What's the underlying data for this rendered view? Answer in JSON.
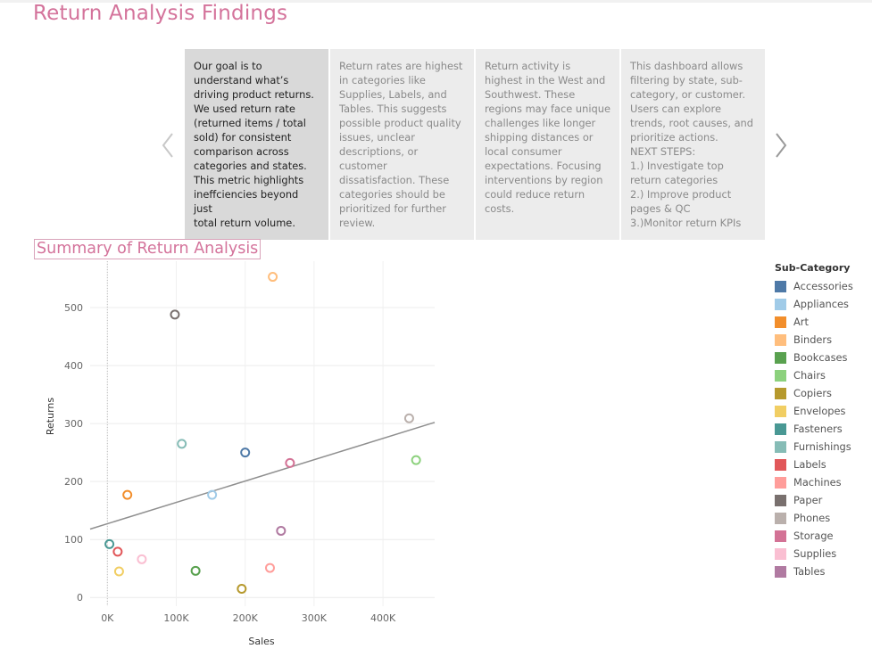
{
  "page": {
    "title": "Return Analysis Findings"
  },
  "carousel": {
    "prev_icon": "chevron-left-icon",
    "next_icon": "chevron-right-icon",
    "cards": [
      {
        "text": "Our goal is to\nunderstand what’s\ndriving product returns.\nWe used return rate\n(returned items / total\nsold) for consistent\ncomparison across\ncategories and states.\nThis metric highlights\nineffciencies beyond just\ntotal return volume."
      },
      {
        "text": "Return rates are highest\nin categories like\nSupplies, Labels, and\nTables. This suggests\npossible product quality\nissues, unclear\ndescriptions, or\ncustomer\ndissatisfaction. These\ncategories should be\nprioritized for further\nreview."
      },
      {
        "text": "Return activity is\nhighest in the West and\nSouthwest. These\nregions may face unique\nchallenges like longer\nshipping distances or\nlocal consumer\nexpectations. Focusing\ninterventions by region\ncould reduce return\ncosts."
      },
      {
        "text": "This dashboard allows\nfiltering by state, sub-\ncategory, or customer.\nUsers can explore\ntrends, root causes, and\nprioritize actions.\nNEXT STEPS:\n1.) Investigate top\nreturn categories\n2.) Improve product\npages & QC\n3.)Monitor return KPIs"
      }
    ]
  },
  "summary": {
    "title": "Summary of Return Analysis"
  },
  "chart_data": {
    "type": "scatter",
    "xlabel": "Sales",
    "ylabel": "Returns",
    "xlim": [
      -25000,
      475000
    ],
    "ylim": [
      -15,
      580
    ],
    "x_ticks": [
      0,
      100000,
      200000,
      300000,
      400000
    ],
    "x_tick_labels": [
      "0K",
      "100K",
      "200K",
      "300K",
      "400K"
    ],
    "y_ticks": [
      0,
      100,
      200,
      300,
      400,
      500
    ],
    "y_tick_labels": [
      "0",
      "100",
      "200",
      "300",
      "400",
      "500"
    ],
    "trend_line": {
      "x": [
        -25000,
        475000
      ],
      "y": [
        118,
        302
      ]
    },
    "grid": true,
    "legend": {
      "title": "Sub-Category",
      "placement": "right"
    },
    "points": [
      {
        "name": "Accessories",
        "color": "#4e79a7",
        "x": 200000,
        "y": 250
      },
      {
        "name": "Appliances",
        "color": "#a0cbe8",
        "x": 152000,
        "y": 177
      },
      {
        "name": "Art",
        "color": "#f28e2b",
        "x": 29000,
        "y": 177
      },
      {
        "name": "Binders",
        "color": "#ffbe7d",
        "x": 240000,
        "y": 553
      },
      {
        "name": "Bookcases",
        "color": "#59a14f",
        "x": 128000,
        "y": 46
      },
      {
        "name": "Chairs",
        "color": "#8cd17d",
        "x": 448000,
        "y": 237
      },
      {
        "name": "Copiers",
        "color": "#b6992d",
        "x": 195000,
        "y": 15
      },
      {
        "name": "Envelopes",
        "color": "#f1ce63",
        "x": 17000,
        "y": 45
      },
      {
        "name": "Fasteners",
        "color": "#499894",
        "x": 3000,
        "y": 92
      },
      {
        "name": "Furnishings",
        "color": "#86bcb6",
        "x": 108000,
        "y": 265
      },
      {
        "name": "Labels",
        "color": "#e15759",
        "x": 15000,
        "y": 79
      },
      {
        "name": "Machines",
        "color": "#ff9d9a",
        "x": 236000,
        "y": 51
      },
      {
        "name": "Paper",
        "color": "#79706e",
        "x": 98000,
        "y": 488
      },
      {
        "name": "Phones",
        "color": "#bab0ac",
        "x": 438000,
        "y": 309
      },
      {
        "name": "Storage",
        "color": "#d37295",
        "x": 265000,
        "y": 232
      },
      {
        "name": "Supplies",
        "color": "#fabfd2",
        "x": 50000,
        "y": 66
      },
      {
        "name": "Tables",
        "color": "#b07aa1",
        "x": 252000,
        "y": 115
      }
    ]
  }
}
